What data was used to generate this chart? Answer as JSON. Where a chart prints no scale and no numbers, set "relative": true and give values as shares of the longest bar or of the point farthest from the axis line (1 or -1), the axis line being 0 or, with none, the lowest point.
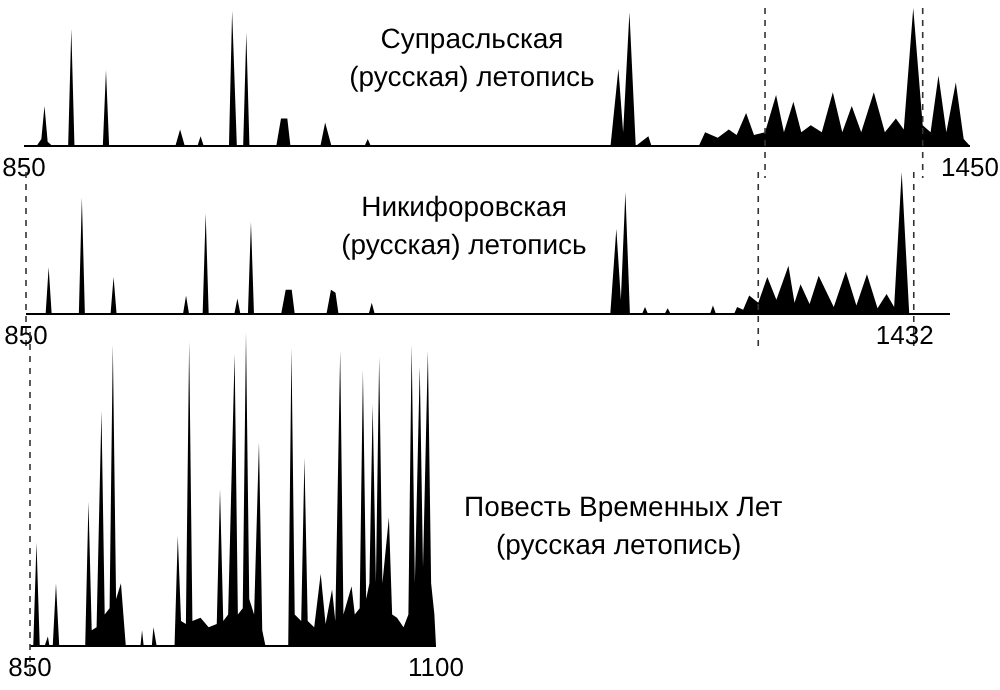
{
  "chart_data": [
    {
      "type": "area",
      "title": "Супрасльская\n(русская) летопись",
      "relative": true,
      "xlim": [
        850,
        1450
      ],
      "xticks": [
        850,
        1450
      ],
      "ref_lines": [
        {
          "axis": "x",
          "value": 1320,
          "line_style": "dashed"
        },
        {
          "axis": "x",
          "value": 1420,
          "line_style": "dashed"
        }
      ],
      "series": [
        {
          "color": "#000000",
          "x": [
            850,
            858,
            861,
            863,
            865,
            868,
            878,
            880,
            882,
            900,
            902,
            904,
            946,
            949,
            952,
            960,
            962,
            964,
            980,
            982,
            985,
            989,
            991,
            993,
            1010,
            1013,
            1017,
            1019,
            1038,
            1041,
            1045,
            1066,
            1068,
            1070,
            1222,
            1227,
            1230,
            1234,
            1238,
            1246,
            1248,
            1278,
            1282,
            1290,
            1297,
            1302,
            1308,
            1313,
            1320,
            1327,
            1332,
            1338,
            1343,
            1349,
            1356,
            1363,
            1369,
            1375,
            1381,
            1389,
            1396,
            1403,
            1408,
            1414,
            1420,
            1425,
            1430,
            1435,
            1441,
            1446,
            1450
          ],
          "values": [
            0,
            0,
            0.05,
            0.29,
            0.03,
            0,
            0,
            0.85,
            0,
            0,
            0.55,
            0,
            0,
            0.12,
            0,
            0,
            0.07,
            0,
            0,
            0.98,
            0,
            0,
            0.82,
            0,
            0,
            0.2,
            0.2,
            0,
            0,
            0.17,
            0,
            0,
            0.05,
            0,
            0,
            0.56,
            0.1,
            0.97,
            0,
            0.07,
            0,
            0,
            0.1,
            0.06,
            0.12,
            0.08,
            0.24,
            0.08,
            0.1,
            0.37,
            0.1,
            0.32,
            0.1,
            0.15,
            0.1,
            0.39,
            0.1,
            0.29,
            0.1,
            0.39,
            0.1,
            0.2,
            0.12,
            1.0,
            0.15,
            0.1,
            0.51,
            0.1,
            0.46,
            0.05,
            0
          ]
        }
      ]
    },
    {
      "type": "area",
      "title": "Никифоровская\n(русская) летопись",
      "relative": true,
      "xlim": [
        850,
        1462
      ],
      "xticks": [
        850,
        1432
      ],
      "ref_lines": [
        {
          "axis": "x",
          "value": 850,
          "line_style": "dashed"
        },
        {
          "axis": "x",
          "value": 1335,
          "line_style": "dashed"
        },
        {
          "axis": "x",
          "value": 1438,
          "line_style": "dashed"
        }
      ],
      "series": [
        {
          "color": "#000000",
          "x": [
            850,
            863,
            865,
            867,
            885,
            887,
            889,
            906,
            908,
            910,
            954,
            956,
            958,
            967,
            969,
            971,
            988,
            990,
            992,
            997,
            999,
            1001,
            1019,
            1022,
            1026,
            1028,
            1049,
            1052,
            1055,
            1057,
            1077,
            1079,
            1081,
            1237,
            1241,
            1244,
            1247,
            1250,
            1258,
            1260,
            1262,
            1273,
            1275,
            1277,
            1303,
            1305,
            1307,
            1319,
            1321,
            1325,
            1329,
            1335,
            1341,
            1347,
            1355,
            1359,
            1363,
            1369,
            1375,
            1385,
            1393,
            1400,
            1407,
            1414,
            1420,
            1425,
            1430,
            1435,
            1462
          ],
          "values": [
            0,
            0,
            0.33,
            0,
            0,
            0.82,
            0,
            0,
            0.26,
            0,
            0,
            0.13,
            0,
            0,
            0.71,
            0,
            0,
            0.11,
            0,
            0,
            0.65,
            0,
            0,
            0.17,
            0.17,
            0,
            0,
            0.17,
            0.15,
            0,
            0,
            0.08,
            0,
            0,
            0.6,
            0.1,
            0.86,
            0,
            0,
            0.05,
            0,
            0,
            0.04,
            0,
            0,
            0.06,
            0,
            0,
            0.05,
            0.03,
            0.13,
            0.08,
            0.26,
            0.1,
            0.34,
            0.08,
            0.21,
            0.07,
            0.27,
            0.05,
            0.3,
            0.06,
            0.28,
            0.04,
            0.14,
            0.05,
            1.0,
            0,
            0
          ]
        }
      ]
    },
    {
      "type": "area",
      "title": "Повесть Временных Лет\n(русская летопись)",
      "relative": true,
      "xlim": [
        850,
        1100
      ],
      "xticks": [
        850,
        1100
      ],
      "ref_lines": [
        {
          "axis": "x",
          "value": 850,
          "line_style": "dashed"
        }
      ],
      "series": [
        {
          "color": "#000000",
          "x": [
            850,
            852,
            854,
            856,
            859,
            861,
            862,
            864,
            866,
            868,
            884,
            886,
            888,
            891,
            894,
            896,
            899,
            901,
            903,
            906,
            909,
            918,
            919,
            920,
            925,
            926,
            928,
            939,
            941,
            943,
            946,
            948,
            950,
            955,
            960,
            965,
            967,
            969,
            972,
            976,
            978,
            981,
            983,
            985,
            988,
            991,
            993,
            995,
            1009,
            1011,
            1013,
            1017,
            1019,
            1021,
            1025,
            1029,
            1032,
            1036,
            1038,
            1041,
            1043,
            1048,
            1050,
            1053,
            1055,
            1057,
            1059,
            1061,
            1063,
            1065,
            1067,
            1071,
            1073,
            1076,
            1080,
            1083,
            1085,
            1087,
            1090,
            1092,
            1095,
            1097,
            1099,
            1100
          ],
          "values": [
            0,
            0,
            0.33,
            0,
            0,
            0.03,
            0,
            0,
            0.2,
            0,
            0,
            0.46,
            0.05,
            0.06,
            0.75,
            0.1,
            0.12,
            0.96,
            0.15,
            0.2,
            0,
            0,
            0.05,
            0,
            0,
            0.06,
            0,
            0,
            0.35,
            0.08,
            0.07,
            0.97,
            0.08,
            0.09,
            0.06,
            0.07,
            0.5,
            0.08,
            0.1,
            0.93,
            0.1,
            0.12,
            1.0,
            0.15,
            0.1,
            0.65,
            0.05,
            0,
            0,
            0.95,
            0.1,
            0.08,
            0.6,
            0.08,
            0.06,
            0.23,
            0.07,
            0.18,
            0.08,
            0.94,
            0.1,
            0.19,
            0.1,
            0.12,
            0.88,
            0.15,
            0.2,
            0.77,
            0.2,
            0.92,
            0.2,
            0.41,
            0.1,
            0.09,
            0.06,
            0.1,
            0.96,
            0.2,
            0.89,
            0.25,
            0.94,
            0.2,
            0.1,
            0
          ]
        }
      ]
    }
  ]
}
